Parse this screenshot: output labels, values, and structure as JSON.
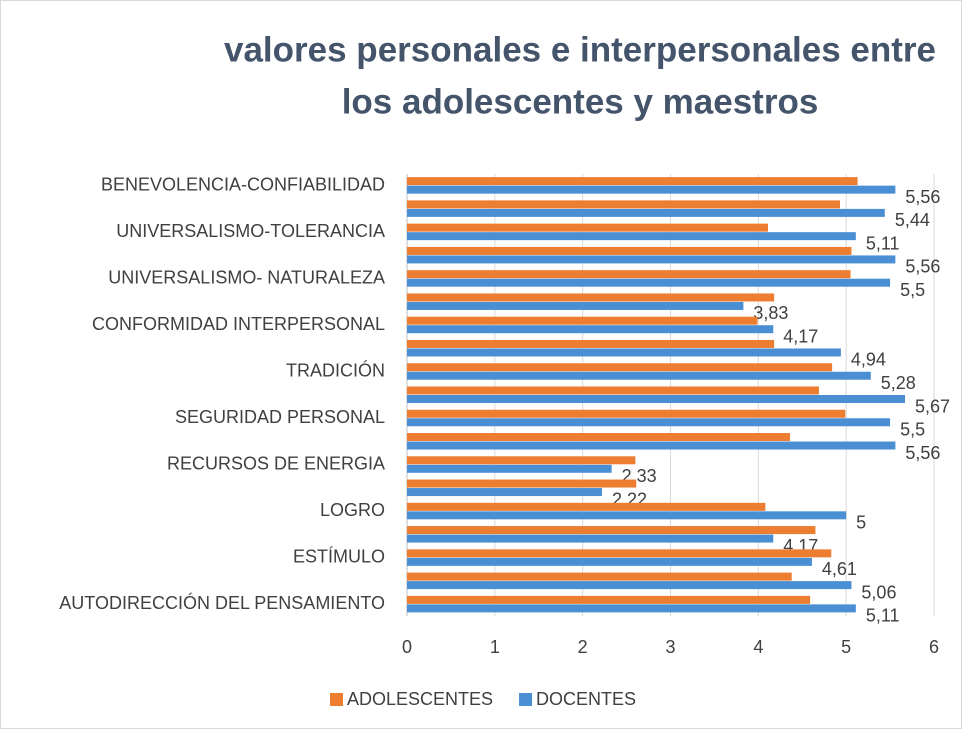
{
  "chart_data": {
    "type": "bar",
    "orientation": "horizontal",
    "title": [
      "valores personales e interpersonales entre",
      "los adolescentes y maestros"
    ],
    "categories": [
      "BENEVOLENCIA-CONFIABILIDAD",
      null,
      "UNIVERSALISMO-TOLERANCIA",
      null,
      "UNIVERSALISMO- NATURALEZA ",
      null,
      "CONFORMIDAD INTERPERSONAL",
      null,
      "TRADICIÓN",
      null,
      "SEGURIDAD PERSONAL",
      null,
      "RECURSOS DE ENERGIA",
      null,
      "LOGRO",
      null,
      "ESTÍMULO",
      null,
      "AUTODIRECCIÓN DEL PENSAMIENTO"
    ],
    "series": [
      {
        "name": "ADOLESCENTES",
        "color": "#ed7d31",
        "values": [
          5.13,
          4.93,
          4.11,
          5.06,
          5.05,
          4.18,
          3.99,
          4.18,
          4.84,
          4.69,
          4.99,
          4.36,
          2.6,
          2.61,
          4.08,
          4.65,
          4.83,
          4.38,
          4.59
        ]
      },
      {
        "name": "DOCENTES",
        "color": "#4a8fd4",
        "values": [
          5.56,
          5.44,
          5.11,
          5.56,
          5.5,
          3.83,
          4.17,
          4.94,
          5.28,
          5.67,
          5.5,
          5.56,
          2.33,
          2.22,
          5,
          4.17,
          4.61,
          5.06,
          5.11
        ],
        "value_labels": [
          "5,56",
          "5,44",
          "5,11",
          "5,56",
          "5,5",
          "3,83",
          "4,17",
          "4,94",
          "5,28",
          "5,67",
          "5,5",
          "5,56",
          "2,33",
          "2,22",
          "5",
          "4,17",
          "4,61",
          "5,06",
          "5,11"
        ]
      }
    ],
    "xlim": [
      0,
      6
    ],
    "xticks": [
      0,
      1,
      2,
      3,
      4,
      5,
      6
    ],
    "grid": true,
    "legend": "bottom"
  }
}
